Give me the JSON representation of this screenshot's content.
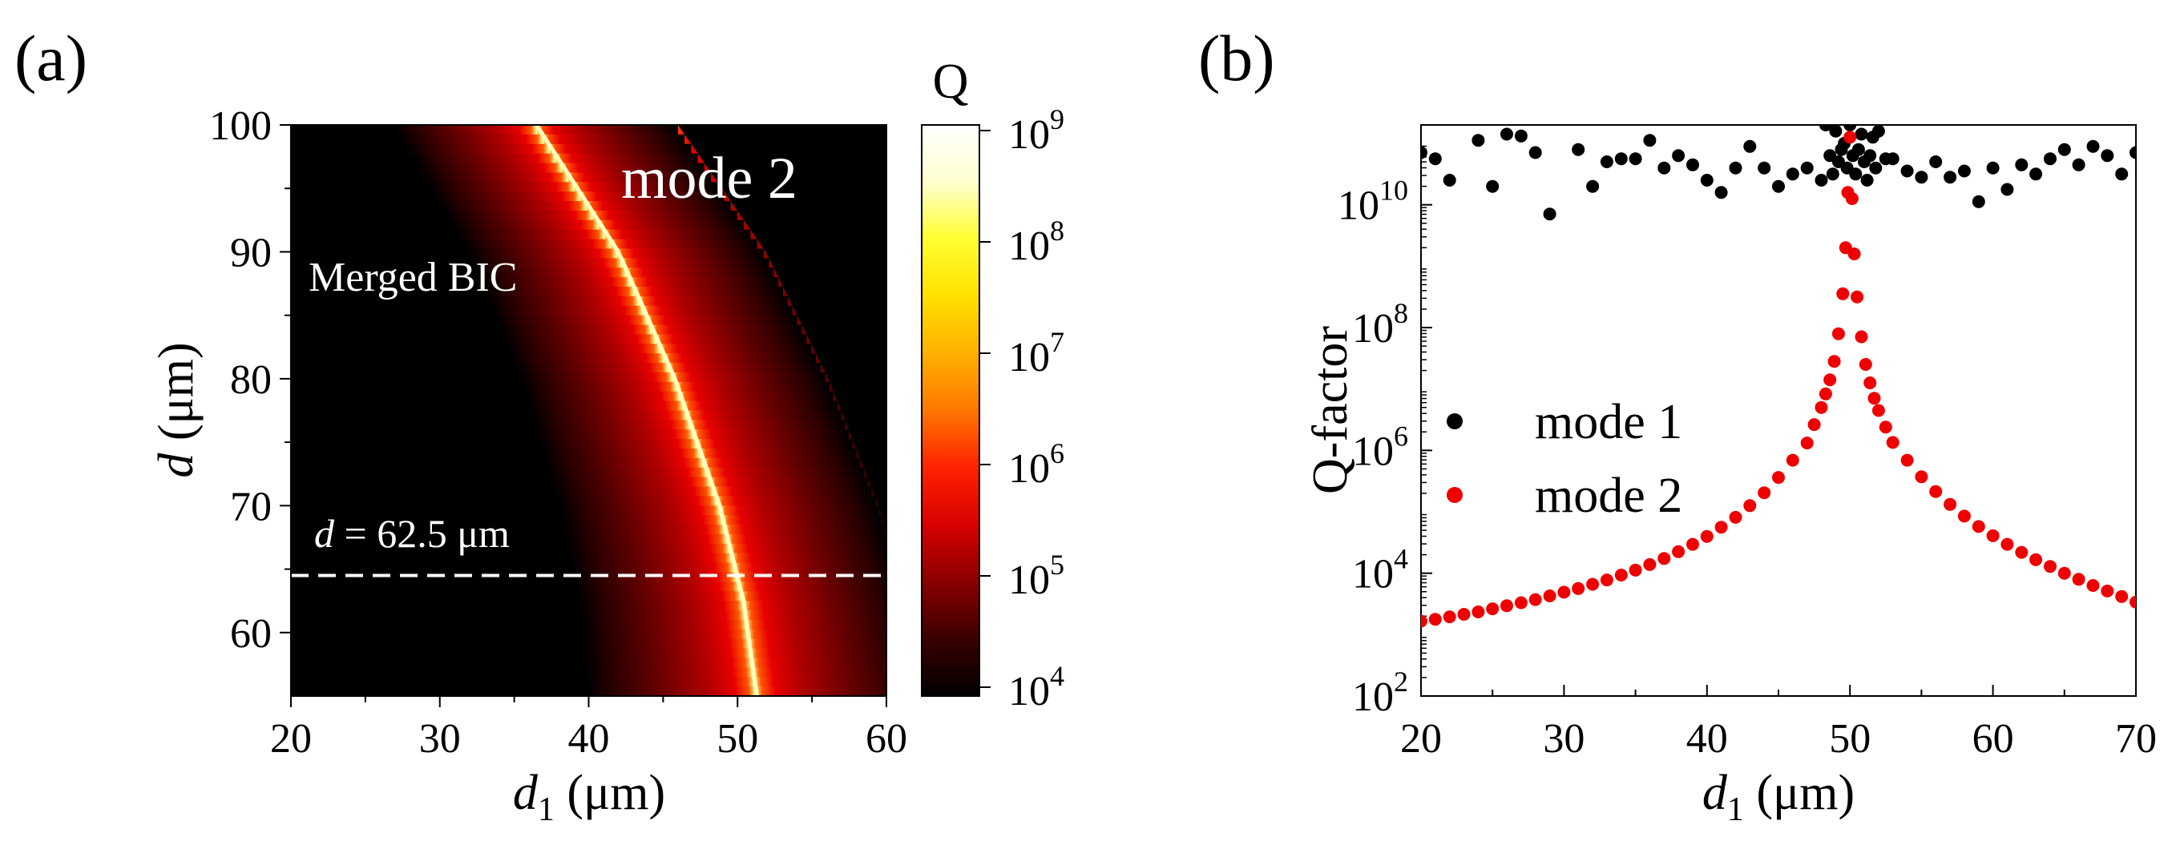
{
  "panels": {
    "a": {
      "label": "(a)",
      "chart_data": {
        "type": "heatmap",
        "title": "",
        "xlabel_sym": "d",
        "xlabel_sub": "1",
        "xlabel_unit": " (μm)",
        "ylabel_sym": "d",
        "ylabel_unit": " (μm)",
        "xlim": [
          20,
          60
        ],
        "ylim": [
          55,
          100
        ],
        "xticks": [
          20,
          30,
          40,
          50,
          60
        ],
        "yticks": [
          60,
          70,
          80,
          90,
          100
        ],
        "bic_curve": {
          "d": [
            100,
            90,
            80,
            70,
            62.5,
            55
          ],
          "d1": [
            36.5,
            42.0,
            45.8,
            48.8,
            50.4,
            51.3
          ]
        },
        "dashed_line_d": 64.5,
        "annotations": {
          "mode": "mode 2",
          "merged_bic": "Merged BIC",
          "d_label_sym": "d",
          "d_label_rest": " = 62.5 μm"
        },
        "colorbar": {
          "title": "Q",
          "base": "10",
          "exponents": [
            "9",
            "8",
            "7",
            "6",
            "5",
            "4"
          ]
        },
        "colors": [
          "#000000",
          "#3a0000",
          "#8a0000",
          "#d80000",
          "#ff2200",
          "#ff7700",
          "#ffb000",
          "#ffe000",
          "#ffff30",
          "#ffffd0",
          "#ffffff"
        ]
      }
    },
    "b": {
      "label": "(b)",
      "chart_data": {
        "type": "scatter",
        "xlabel_sym": "d",
        "xlabel_sub": "1",
        "xlabel_unit": " (μm)",
        "ylabel": "Q-factor",
        "xlim": [
          20,
          70
        ],
        "ylim_log10": [
          2,
          11.3
        ],
        "xticks": [
          20,
          30,
          40,
          50,
          60,
          70
        ],
        "yticks": [
          {
            "base": "10",
            "exp": "2",
            "v": 2
          },
          {
            "base": "10",
            "exp": "4",
            "v": 4
          },
          {
            "base": "10",
            "exp": "6",
            "v": 6
          },
          {
            "base": "10",
            "exp": "8",
            "v": 8
          },
          {
            "base": "10",
            "exp": "10",
            "v": 10
          }
        ],
        "series": [
          {
            "name": "mode 1",
            "color": "#000000",
            "points": [
              [
                20,
                10.85
              ],
              [
                21,
                10.75
              ],
              [
                22,
                10.4
              ],
              [
                24,
                11.05
              ],
              [
                25,
                10.3
              ],
              [
                26,
                11.15
              ],
              [
                27,
                11.12
              ],
              [
                28,
                10.85
              ],
              [
                29,
                9.85
              ],
              [
                31,
                10.9
              ],
              [
                32,
                10.3
              ],
              [
                33,
                10.7
              ],
              [
                34,
                10.75
              ],
              [
                35,
                10.75
              ],
              [
                36,
                11.05
              ],
              [
                37,
                10.6
              ],
              [
                38,
                10.8
              ],
              [
                39,
                10.65
              ],
              [
                40,
                10.4
              ],
              [
                41,
                10.2
              ],
              [
                42,
                10.6
              ],
              [
                43,
                10.95
              ],
              [
                44,
                10.6
              ],
              [
                45,
                10.3
              ],
              [
                46,
                10.5
              ],
              [
                47,
                10.6
              ],
              [
                48,
                10.4
              ],
              [
                48.3,
                11.3
              ],
              [
                48.6,
                10.8
              ],
              [
                48.8,
                10.5
              ],
              [
                49,
                11.2
              ],
              [
                49.2,
                10.7
              ],
              [
                49.4,
                10.9
              ],
              [
                49.6,
                11.0
              ],
              [
                49.8,
                10.6
              ],
              [
                50,
                11.3
              ],
              [
                50.2,
                10.8
              ],
              [
                50.4,
                10.5
              ],
              [
                50.6,
                10.9
              ],
              [
                50.8,
                11.15
              ],
              [
                51,
                10.7
              ],
              [
                51.2,
                10.4
              ],
              [
                51.4,
                10.8
              ],
              [
                51.6,
                11.1
              ],
              [
                51.8,
                10.6
              ],
              [
                52,
                11.2
              ],
              [
                52.5,
                10.75
              ],
              [
                53,
                10.75
              ],
              [
                54,
                10.55
              ],
              [
                55,
                10.45
              ],
              [
                56,
                10.7
              ],
              [
                57,
                10.45
              ],
              [
                58,
                10.55
              ],
              [
                59,
                10.05
              ],
              [
                60,
                10.6
              ],
              [
                61,
                10.25
              ],
              [
                62,
                10.65
              ],
              [
                63,
                10.5
              ],
              [
                64,
                10.75
              ],
              [
                65,
                10.9
              ],
              [
                66,
                10.65
              ],
              [
                67,
                10.95
              ],
              [
                68,
                10.8
              ],
              [
                69,
                10.5
              ],
              [
                70,
                10.85
              ]
            ]
          },
          {
            "name": "mode 2",
            "color": "#ee0000",
            "points": [
              [
                20,
                3.22
              ],
              [
                21,
                3.25
              ],
              [
                22,
                3.29
              ],
              [
                23,
                3.33
              ],
              [
                24,
                3.37
              ],
              [
                25,
                3.42
              ],
              [
                26,
                3.47
              ],
              [
                27,
                3.52
              ],
              [
                28,
                3.57
              ],
              [
                29,
                3.63
              ],
              [
                30,
                3.69
              ],
              [
                31,
                3.75
              ],
              [
                32,
                3.82
              ],
              [
                33,
                3.89
              ],
              [
                34,
                3.97
              ],
              [
                35,
                4.05
              ],
              [
                36,
                4.14
              ],
              [
                37,
                4.24
              ],
              [
                38,
                4.35
              ],
              [
                39,
                4.47
              ],
              [
                40,
                4.6
              ],
              [
                41,
                4.75
              ],
              [
                42,
                4.91
              ],
              [
                43,
                5.1
              ],
              [
                44,
                5.31
              ],
              [
                45,
                5.56
              ],
              [
                46,
                5.84
              ],
              [
                47,
                6.12
              ],
              [
                47.5,
                6.42
              ],
              [
                48,
                6.7
              ],
              [
                48.3,
                6.92
              ],
              [
                48.6,
                7.15
              ],
              [
                48.9,
                7.45
              ],
              [
                49.2,
                7.9
              ],
              [
                49.5,
                8.55
              ],
              [
                49.7,
                9.3
              ],
              [
                49.85,
                10.2
              ],
              [
                50,
                11.1
              ],
              [
                50.15,
                10.1
              ],
              [
                50.3,
                9.2
              ],
              [
                50.5,
                8.5
              ],
              [
                50.8,
                7.85
              ],
              [
                51.1,
                7.4
              ],
              [
                51.4,
                7.1
              ],
              [
                51.7,
                6.85
              ],
              [
                52,
                6.65
              ],
              [
                52.5,
                6.38
              ],
              [
                53,
                6.13
              ],
              [
                54,
                5.84
              ],
              [
                55,
                5.57
              ],
              [
                56,
                5.33
              ],
              [
                57,
                5.12
              ],
              [
                58,
                4.93
              ],
              [
                59,
                4.76
              ],
              [
                60,
                4.61
              ],
              [
                61,
                4.47
              ],
              [
                62,
                4.34
              ],
              [
                63,
                4.22
              ],
              [
                64,
                4.11
              ],
              [
                65,
                4.0
              ],
              [
                66,
                3.9
              ],
              [
                67,
                3.8
              ],
              [
                68,
                3.71
              ],
              [
                69,
                3.62
              ],
              [
                70,
                3.53
              ]
            ]
          }
        ]
      }
    }
  }
}
